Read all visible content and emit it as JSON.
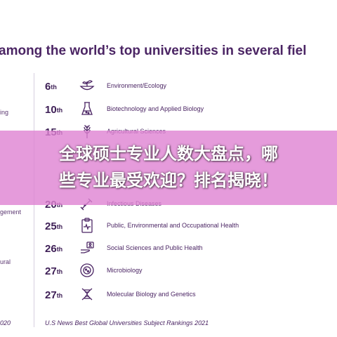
{
  "header": {
    "text": "among the world’s top universities in several fiel"
  },
  "left_column": [
    "ing",
    "gement",
    "ural",
    "020"
  ],
  "rankings": [
    {
      "rank": "6",
      "suffix": "th",
      "subject": "Environment/Ecology",
      "icon": "globe-plant-icon"
    },
    {
      "rank": "10",
      "suffix": "th",
      "subject": "Biotechnology and Applied Biology",
      "icon": "flask-icon"
    },
    {
      "rank": "15",
      "suffix": "th",
      "subject": "Agricultural Sciences",
      "icon": "wheat-icon"
    },
    {
      "rank": "20",
      "suffix": "th",
      "subject": "Infectious Diseases",
      "icon": "germ-icon"
    },
    {
      "rank": "25",
      "suffix": "th",
      "subject": "Public, Environmental and Occupational Health",
      "icon": "clipboard-heart-icon"
    },
    {
      "rank": "26",
      "suffix": "th",
      "subject": "Social Sciences and Public Health",
      "icon": "hand-people-icon"
    },
    {
      "rank": "27",
      "suffix": "th",
      "subject": "Microbiology",
      "icon": "microbe-icon"
    },
    {
      "rank": "27",
      "suffix": "th",
      "subject": "Molecular Biology and Genetics",
      "icon": "dna-icon"
    }
  ],
  "footer": {
    "source": "U.S News Best Global Universities Subject Rankings 2021"
  },
  "banner": {
    "line1": "全球硕士专业人数大盘点，哪",
    "line2": "些专业最受欢迎？排名揭晓！"
  }
}
